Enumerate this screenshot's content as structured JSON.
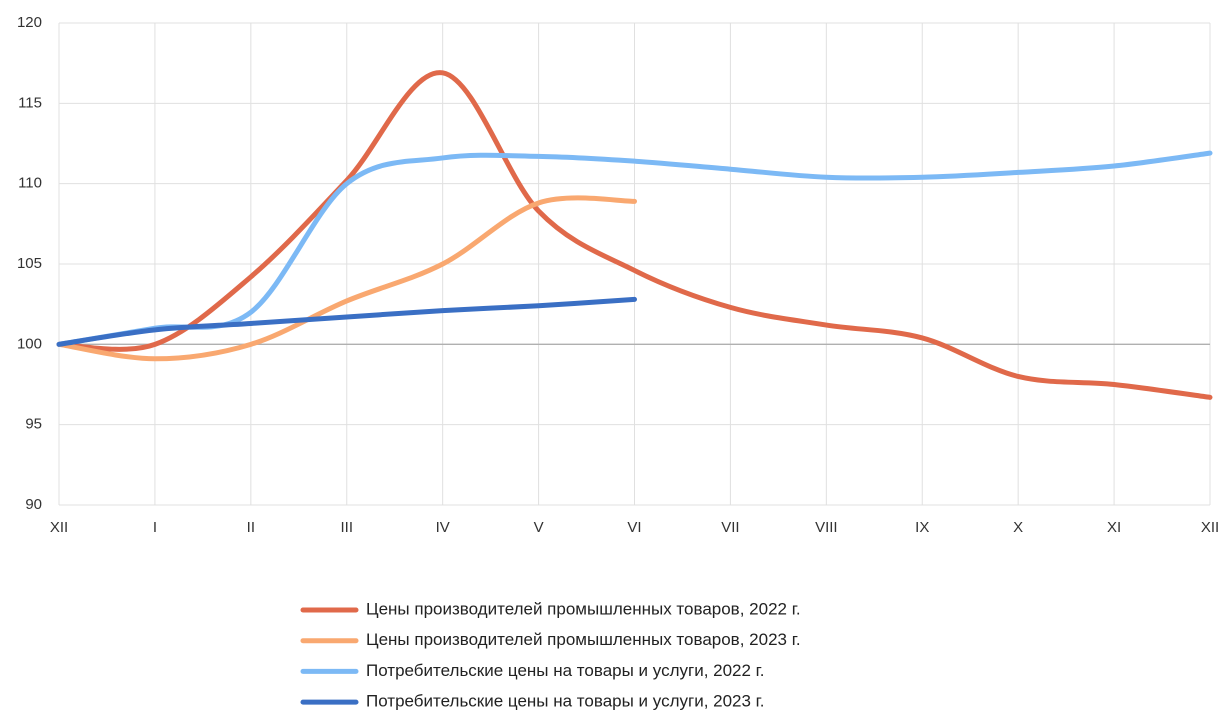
{
  "chart_data": {
    "type": "line",
    "categories": [
      "XII",
      "I",
      "II",
      "III",
      "IV",
      "V",
      "VI",
      "VII",
      "VIII",
      "IX",
      "X",
      "XI",
      "XII"
    ],
    "series": [
      {
        "name": "Цены производителей промышленных товаров, 2022 г.",
        "color": "#e0694a",
        "values": [
          100,
          100.0,
          104.2,
          110.2,
          116.9,
          108.3,
          104.6,
          102.3,
          101.2,
          100.4,
          98.0,
          97.5,
          96.7
        ]
      },
      {
        "name": "Цены производителей промышленных товаров, 2023 г.",
        "color": "#f9a870",
        "values": [
          100,
          99.1,
          100.0,
          102.7,
          105.0,
          108.8,
          108.9,
          null,
          null,
          null,
          null,
          null,
          null
        ]
      },
      {
        "name": "Потребительские цены на товары и услуги, 2022 г.",
        "color": "#7cb9f5",
        "values": [
          100,
          101.0,
          102.0,
          110.0,
          111.6,
          111.7,
          111.4,
          110.9,
          110.4,
          110.4,
          110.7,
          111.1,
          111.9
        ]
      },
      {
        "name": "Потребительские цены на товары и услуги, 2023 г.",
        "color": "#3a6fc4",
        "values": [
          100,
          100.9,
          101.3,
          101.7,
          102.1,
          102.4,
          102.8,
          null,
          null,
          null,
          null,
          null,
          null
        ]
      }
    ],
    "ylim": [
      90,
      120
    ],
    "yticks": [
      90,
      95,
      100,
      105,
      110,
      115,
      120
    ],
    "grid": true,
    "x_axis_at": 100,
    "legend": "bottom"
  }
}
